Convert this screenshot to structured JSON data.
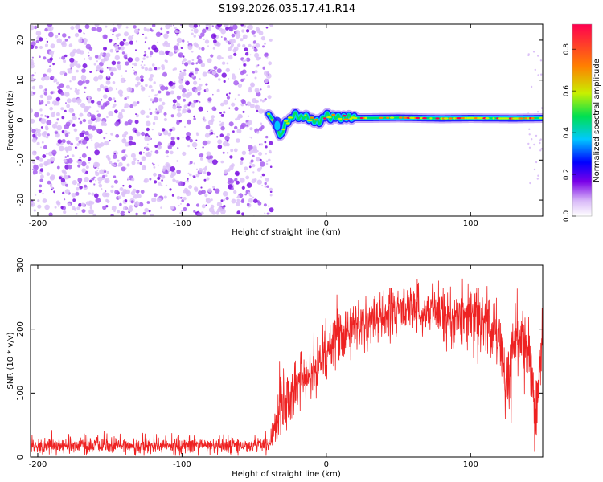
{
  "title": "S199.2026.035.17.41.R14",
  "chart_data": [
    {
      "type": "heatmap",
      "title": "S199.2026.035.17.41.R14",
      "xlabel": "Height of straight line (km)",
      "ylabel": "Frequency (Hz)",
      "xlim": [
        -205,
        150
      ],
      "ylim": [
        -24,
        24
      ],
      "x_ticks": [
        -200,
        -100,
        0,
        100
      ],
      "x_tick_labels": [
        "-200",
        "-100",
        "0",
        "100"
      ],
      "y_ticks": [
        -20,
        -10,
        0,
        10,
        20
      ],
      "y_tick_labels": [
        "-20",
        "-10",
        "0",
        "10",
        "20"
      ],
      "colorbar": {
        "label": "Normalized spectral amplitude",
        "range": [
          0,
          0.92
        ],
        "ticks": [
          0.0,
          0.2,
          0.4,
          0.6,
          0.8
        ],
        "tick_labels": [
          "0.0",
          "0.2",
          "0.4",
          "0.6",
          "0.8"
        ],
        "colors": [
          "#d8b8f8",
          "#7a00e8",
          "#0000ff",
          "#00c8ff",
          "#00e050",
          "#c8f000",
          "#ff8000",
          "#ff0050"
        ]
      },
      "noise_region": {
        "x_from": -205,
        "x_to": -38,
        "amplitude_range": [
          0.0,
          0.15
        ]
      },
      "signal_track": {
        "x": [
          -40,
          -35,
          -32,
          -30,
          -28,
          -25,
          -22,
          -18,
          -15,
          -10,
          -5,
          -2,
          0,
          3,
          6,
          10,
          15,
          20,
          30,
          50,
          80,
          100,
          130,
          150
        ],
        "freq_hz": [
          1.5,
          -1,
          -4,
          -3,
          -0.5,
          0,
          1.5,
          0.5,
          1,
          0,
          -0.5,
          0.5,
          1.5,
          0.5,
          1,
          0.5,
          0.8,
          0.5,
          0.5,
          0.6,
          0.4,
          0.5,
          0.4,
          0.5
        ],
        "peak_amplitude": 0.9
      }
    },
    {
      "type": "line",
      "xlabel": "Height of straight line (km)",
      "ylabel": "SNR (10 * v/v)",
      "xlim": [
        -205,
        150
      ],
      "ylim": [
        0,
        300
      ],
      "x_ticks": [
        -200,
        -100,
        0,
        100
      ],
      "x_tick_labels": [
        "-200",
        "-100",
        "0",
        "100"
      ],
      "y_ticks": [
        0,
        100,
        200,
        300
      ],
      "y_tick_labels": [
        "0",
        "100",
        "200",
        "300"
      ],
      "color": "#ee2222",
      "series": [
        {
          "name": "SNR",
          "x": [
            -205,
            -180,
            -150,
            -120,
            -100,
            -80,
            -60,
            -40,
            -30,
            -20,
            -10,
            0,
            10,
            20,
            30,
            40,
            50,
            60,
            70,
            80,
            90,
            100,
            110,
            120,
            125,
            130,
            140,
            145,
            150
          ],
          "values": [
            18,
            18,
            18,
            17,
            18,
            18,
            18,
            20,
            80,
            110,
            130,
            160,
            190,
            205,
            215,
            220,
            230,
            232,
            230,
            225,
            215,
            220,
            210,
            190,
            100,
            180,
            160,
            60,
            200
          ],
          "noise_spread": [
            12,
            12,
            12,
            12,
            12,
            12,
            12,
            12,
            45,
            40,
            40,
            40,
            35,
            35,
            35,
            35,
            35,
            35,
            35,
            35,
            40,
            45,
            45,
            50,
            60,
            50,
            55,
            50,
            55
          ]
        }
      ]
    }
  ]
}
